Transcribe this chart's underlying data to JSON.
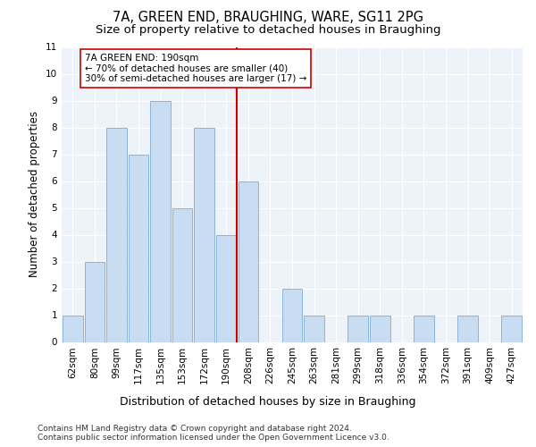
{
  "title": "7A, GREEN END, BRAUGHING, WARE, SG11 2PG",
  "subtitle": "Size of property relative to detached houses in Braughing",
  "xlabel": "Distribution of detached houses by size in Braughing",
  "ylabel": "Number of detached properties",
  "bar_labels": [
    "62sqm",
    "80sqm",
    "99sqm",
    "117sqm",
    "135sqm",
    "153sqm",
    "172sqm",
    "190sqm",
    "208sqm",
    "226sqm",
    "245sqm",
    "263sqm",
    "281sqm",
    "299sqm",
    "318sqm",
    "336sqm",
    "354sqm",
    "372sqm",
    "391sqm",
    "409sqm",
    "427sqm"
  ],
  "bar_values": [
    1,
    3,
    8,
    7,
    9,
    5,
    8,
    4,
    6,
    0,
    2,
    1,
    0,
    1,
    1,
    0,
    1,
    0,
    1,
    0,
    1
  ],
  "bar_color": "#c9ddf2",
  "bar_edge_color": "#8ab4d8",
  "vline_color": "#cc0000",
  "vline_index": 7,
  "annotation_text": "7A GREEN END: 190sqm\n← 70% of detached houses are smaller (40)\n30% of semi-detached houses are larger (17) →",
  "ylim": [
    0,
    11
  ],
  "yticks": [
    0,
    1,
    2,
    3,
    4,
    5,
    6,
    7,
    8,
    9,
    10,
    11
  ],
  "background_color": "#eef2f9",
  "grid_color": "#ffffff",
  "footer_text": "Contains HM Land Registry data © Crown copyright and database right 2024.\nContains public sector information licensed under the Open Government Licence v3.0.",
  "title_fontsize": 10.5,
  "subtitle_fontsize": 9.5,
  "ylabel_fontsize": 8.5,
  "xlabel_fontsize": 9,
  "tick_fontsize": 7.5,
  "annot_fontsize": 7.5,
  "footer_fontsize": 6.5
}
